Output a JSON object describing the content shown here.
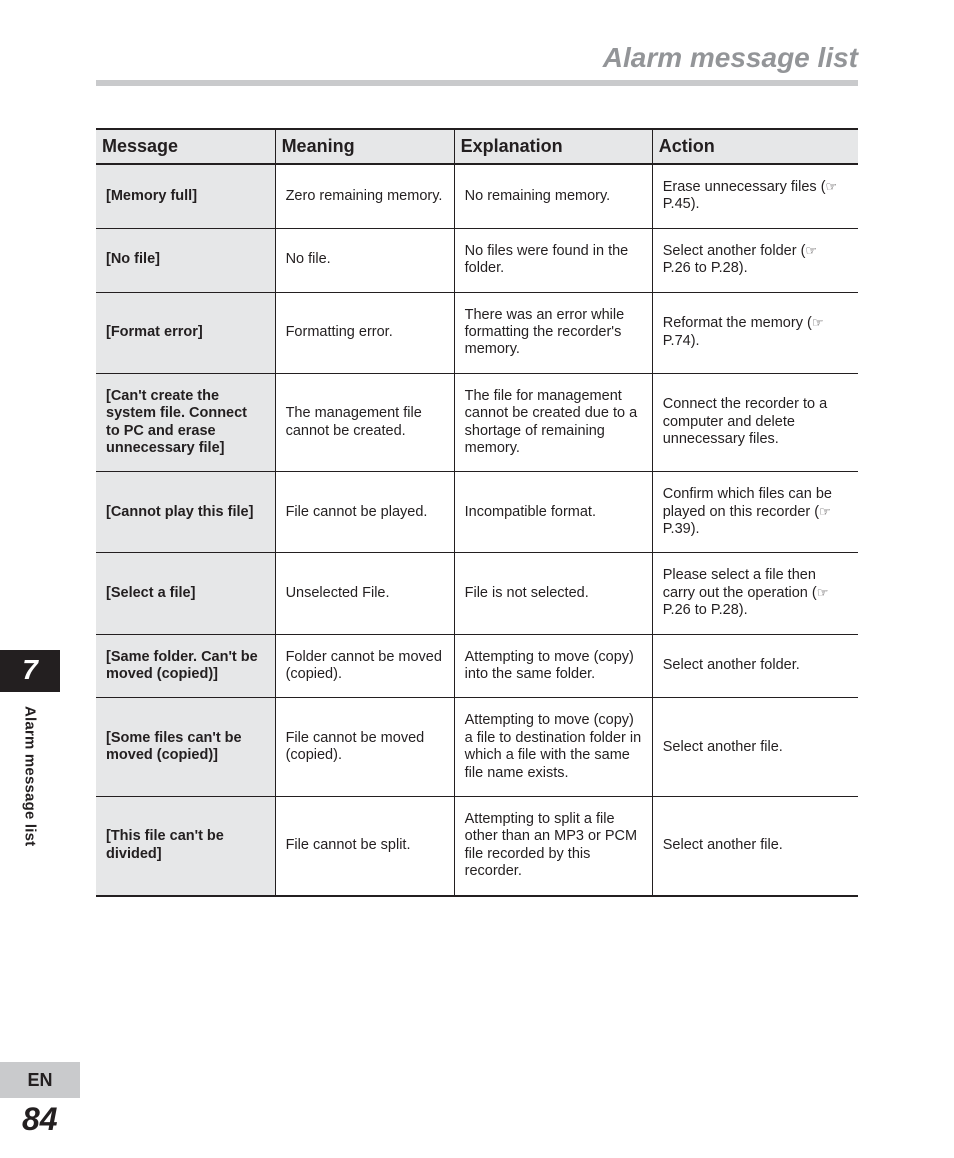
{
  "header": {
    "title": "Alarm message list"
  },
  "sidebar": {
    "chapter": "7",
    "section_label": "Alarm message list"
  },
  "footer": {
    "lang": "EN",
    "page": "84"
  },
  "ref_glyph": "☞",
  "table": {
    "columns": [
      "Message",
      "Meaning",
      "Explanation",
      "Action"
    ],
    "rows": [
      {
        "message": "[Memory full]",
        "meaning": "Zero remaining memory.",
        "explanation": "No remaining memory.",
        "action_pre": "Erase unnecessary files (",
        "action_ref": "☞",
        "action_post": " P.45)."
      },
      {
        "message": "[No file]",
        "meaning": "No file.",
        "explanation": "No files were found in the folder.",
        "action_pre": "Select another folder (",
        "action_ref": "☞",
        "action_post": " P.26 to P.28)."
      },
      {
        "message": "[Format error]",
        "meaning": "Formatting error.",
        "explanation": "There was an error while formatting the recorder's memory.",
        "action_pre": "Reformat the memory (",
        "action_ref": "☞",
        "action_post": " P.74)."
      },
      {
        "message": "[Can't create the system file. Connect to PC and erase unnecessary file]",
        "meaning": "The management file cannot be created.",
        "explanation": "The file for management cannot be created due to a shortage of remaining memory.",
        "action_pre": "Connect the recorder to a computer and delete unnecessary files.",
        "action_ref": "",
        "action_post": ""
      },
      {
        "message": "[Cannot play this file]",
        "meaning": "File cannot be played.",
        "explanation": "Incompatible format.",
        "action_pre": "Confirm which files can be played on this recorder (",
        "action_ref": "☞",
        "action_post": " P.39)."
      },
      {
        "message": "[Select a file]",
        "meaning": "Unselected File.",
        "explanation": "File is not selected.",
        "action_pre": "Please select a file then carry out the operation (",
        "action_ref": "☞",
        "action_post": " P.26 to P.28)."
      },
      {
        "message": "[Same folder. Can't be moved (copied)]",
        "meaning": "Folder cannot be moved (copied).",
        "explanation": "Attempting to move (copy) into the same folder.",
        "action_pre": "Select another folder.",
        "action_ref": "",
        "action_post": ""
      },
      {
        "message": "[Some files can't be moved (copied)]",
        "meaning": "File cannot be moved (copied).",
        "explanation": "Attempting to move (copy) a file to destination folder in which a file with the same file name exists.",
        "action_pre": "Select another file.",
        "action_ref": "",
        "action_post": ""
      },
      {
        "message": "[This file can't be divided]",
        "meaning": "File cannot be split.",
        "explanation": "Attempting to split a file other than an MP3 or PCM file recorded by this recorder.",
        "action_pre": "Select another file.",
        "action_ref": "",
        "action_post": ""
      }
    ]
  }
}
